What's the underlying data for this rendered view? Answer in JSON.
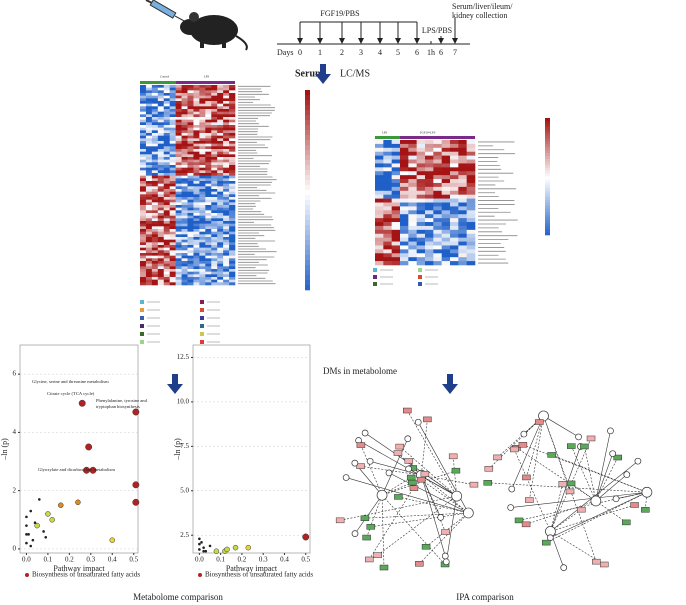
{
  "timeline": {
    "days_label": "Days",
    "days": [
      "0",
      "1",
      "2",
      "3",
      "4",
      "5",
      "6",
      "1h",
      "6",
      "7"
    ],
    "treatment": "FGF19/PBS",
    "challenge": "LPS/PBS",
    "collection": [
      "Serum/liver/ileum/",
      "kidney collection"
    ]
  },
  "workflow": {
    "sample": "Serum",
    "method": "LC/MS"
  },
  "heatmaps": [
    {
      "groups": [
        "Control",
        "LPS"
      ]
    },
    {
      "groups": [
        "LPS",
        "FGF19+LPS"
      ]
    }
  ],
  "section_titles": {
    "metabolome": "DMs in metabolome",
    "metabolome_comparison": "Metabolome comparison",
    "ipa_comparison": "IPA comparison"
  },
  "chart_data": [
    {
      "type": "scatter",
      "xlabel": "Pathway impact",
      "ylabel": "–ln (p)",
      "x": [
        0.26,
        0.51,
        0.29,
        0.28,
        0.31,
        0.51,
        0.51,
        0.24,
        0.16,
        0.4,
        0.12,
        0.1,
        0.05,
        0.08,
        0.02,
        0.0,
        0.01,
        0.03,
        0.0,
        0.06,
        0.04,
        0.0,
        0.02,
        0.0,
        0.09
      ],
      "values": [
        5.0,
        4.7,
        3.5,
        2.7,
        2.7,
        2.2,
        1.6,
        1.6,
        1.5,
        0.3,
        1.0,
        1.2,
        0.8,
        0.6,
        1.3,
        0.2,
        0.5,
        0.3,
        0.8,
        1.7,
        0.9,
        1.1,
        0.1,
        0.5,
        0.4
      ],
      "colors": [
        "#b22222",
        "#b22222",
        "#b22222",
        "#b22222",
        "#b22222",
        "#b22222",
        "#b22222",
        "#e08a1e",
        "#e08a1e",
        "#e8d53a",
        "#c8d84a",
        "#c8d84a",
        "#c8d84a",
        "#222",
        "#222",
        "#222",
        "#222",
        "#222",
        "#222",
        "#222",
        "#222",
        "#222",
        "#222",
        "#222",
        "#222"
      ],
      "xlim": [
        -0.03,
        0.52
      ],
      "ylim": [
        -0.14,
        7.0
      ],
      "xticks": [
        {
          "value": 0,
          "label": "0.0"
        },
        0.1,
        0.2,
        0.3,
        0.4,
        0.5
      ],
      "yticks": [
        0,
        2,
        4,
        6
      ],
      "annotations": [
        "Glycine, serine and threonine metabolism",
        "Citrate cycle (TCA cycle)",
        "Phenylalanine, tyrosine and",
        "tryptophan biosynthesis",
        "Glyoxylate and dicarboxylate metabolism"
      ],
      "legend": "Biosynthesis of unsaturated fatty acids"
    },
    {
      "type": "scatter",
      "xlabel": "Pathway impact",
      "ylabel": "–ln (p)",
      "x": [
        0.5,
        0.23,
        0.17,
        0.12,
        0.13,
        0.08,
        0.0,
        0.01,
        0.02,
        0.0,
        0.03,
        0.05,
        0.0,
        0.02
      ],
      "values": [
        2.4,
        1.8,
        1.8,
        1.6,
        1.7,
        1.6,
        2.3,
        2.1,
        1.8,
        1.7,
        1.6,
        1.9,
        2.0,
        1.6
      ],
      "colors": [
        "#b22222",
        "#e8d53a",
        "#c8d84a",
        "#c8d84a",
        "#c8d84a",
        "#c8d84a",
        "#222",
        "#222",
        "#222",
        "#222",
        "#222",
        "#222",
        "#222",
        "#222"
      ],
      "xlim": [
        -0.03,
        0.52
      ],
      "ylim": [
        1.5,
        13.2
      ],
      "xticks": [
        {
          "value": 0,
          "label": "0.0"
        },
        0.1,
        0.2,
        0.3,
        0.4,
        0.5
      ],
      "yticks": [
        2.5,
        {
          "value": 5,
          "label": "5.0"
        },
        7.5,
        {
          "value": 10,
          "label": "10.0"
        },
        12.5
      ],
      "legend": "Biosynthesis of unsaturated fatty acids"
    }
  ]
}
